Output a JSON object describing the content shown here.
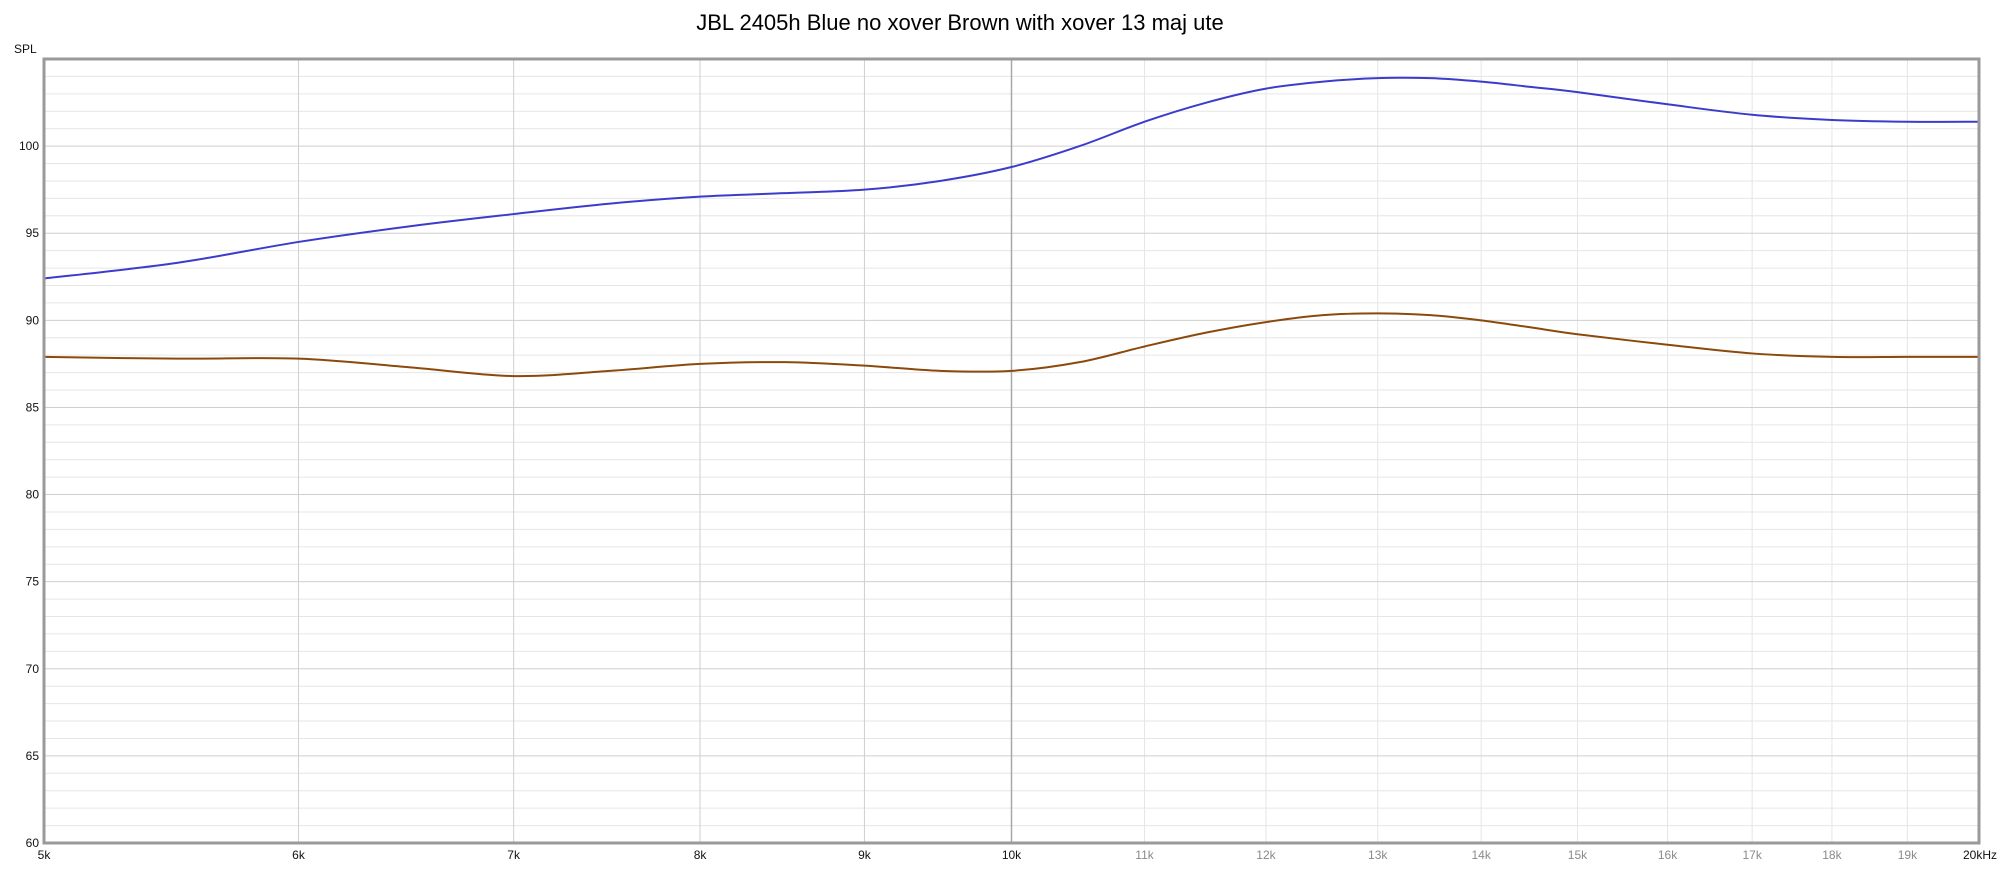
{
  "chart_data": {
    "type": "line",
    "title": "JBL 2405h Blue no xover Brown with xover 13 maj ute",
    "xlabel": "",
    "ylabel": "SPL",
    "x_scale": "log",
    "xlim": [
      5000,
      20000
    ],
    "ylim": [
      60,
      105
    ],
    "grid": true,
    "legend": "none",
    "x_ticks": [
      {
        "value": 5000,
        "label": "5k",
        "major": true
      },
      {
        "value": 6000,
        "label": "6k",
        "major": true
      },
      {
        "value": 7000,
        "label": "7k",
        "major": true
      },
      {
        "value": 8000,
        "label": "8k",
        "major": true
      },
      {
        "value": 9000,
        "label": "9k",
        "major": true
      },
      {
        "value": 10000,
        "label": "10k",
        "major": true
      },
      {
        "value": 11000,
        "label": "11k",
        "major": false
      },
      {
        "value": 12000,
        "label": "12k",
        "major": false
      },
      {
        "value": 13000,
        "label": "13k",
        "major": false
      },
      {
        "value": 14000,
        "label": "14k",
        "major": false
      },
      {
        "value": 15000,
        "label": "15k",
        "major": false
      },
      {
        "value": 16000,
        "label": "16k",
        "major": false
      },
      {
        "value": 17000,
        "label": "17k",
        "major": false
      },
      {
        "value": 18000,
        "label": "18k",
        "major": false
      },
      {
        "value": 19000,
        "label": "19k",
        "major": false
      },
      {
        "value": 20000,
        "label": "20kHz",
        "major": true
      }
    ],
    "y_ticks": [
      {
        "value": 60,
        "label": "60"
      },
      {
        "value": 65,
        "label": "65"
      },
      {
        "value": 70,
        "label": "70"
      },
      {
        "value": 75,
        "label": "75"
      },
      {
        "value": 80,
        "label": "80"
      },
      {
        "value": 85,
        "label": "85"
      },
      {
        "value": 90,
        "label": "90"
      },
      {
        "value": 95,
        "label": "95"
      },
      {
        "value": 100,
        "label": "100"
      }
    ],
    "series": [
      {
        "color": "#3c3ccc",
        "x": [
          5000,
          5500,
          6000,
          6500,
          7000,
          7500,
          8000,
          8500,
          9000,
          9500,
          10000,
          10500,
          11000,
          11500,
          12000,
          12500,
          13000,
          13500,
          14000,
          14500,
          15000,
          16000,
          17000,
          18000,
          19000,
          20000
        ],
        "values": [
          92.4,
          93.3,
          94.5,
          95.4,
          96.1,
          96.7,
          97.1,
          97.3,
          97.5,
          98.0,
          98.8,
          100.0,
          101.4,
          102.5,
          103.3,
          103.7,
          103.9,
          103.9,
          103.7,
          103.4,
          103.1,
          102.4,
          101.8,
          101.5,
          101.4,
          101.4
        ]
      },
      {
        "color": "#8b4a0c",
        "x": [
          5000,
          5500,
          6000,
          6500,
          7000,
          7500,
          8000,
          8500,
          9000,
          9500,
          10000,
          10500,
          11000,
          11500,
          12000,
          12500,
          13000,
          13500,
          14000,
          14500,
          15000,
          16000,
          17000,
          18000,
          19000,
          20000
        ],
        "values": [
          87.9,
          87.8,
          87.8,
          87.3,
          86.8,
          87.1,
          87.5,
          87.6,
          87.4,
          87.1,
          87.1,
          87.6,
          88.5,
          89.3,
          89.9,
          90.3,
          90.4,
          90.3,
          90.0,
          89.6,
          89.2,
          88.6,
          88.1,
          87.9,
          87.9,
          87.9
        ]
      }
    ]
  }
}
